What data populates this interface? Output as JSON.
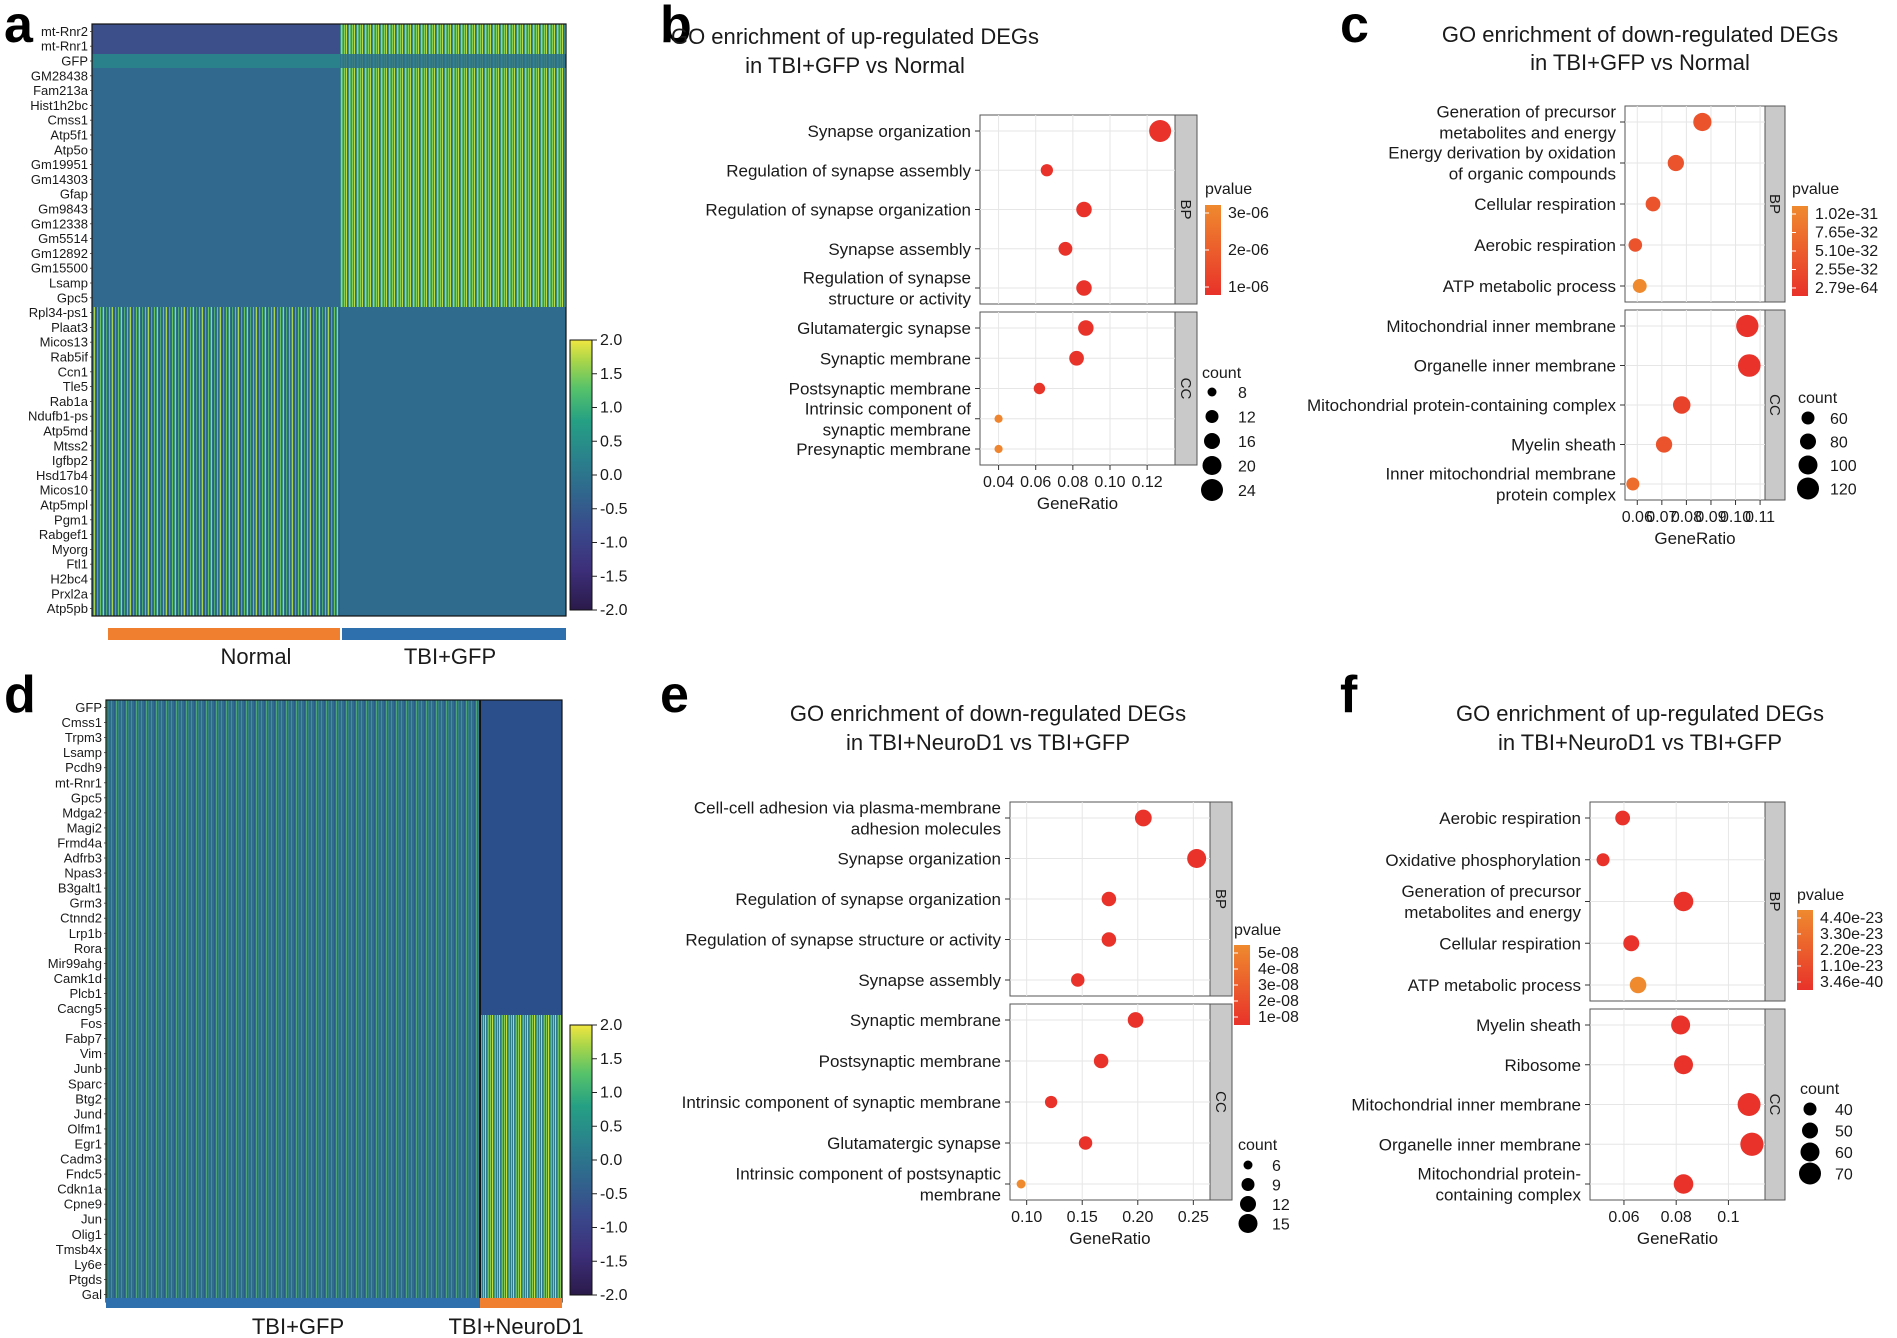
{
  "panels": {
    "a": {
      "letter": "a",
      "genes": [
        "mt-Rnr2",
        "mt-Rnr1",
        "GFP",
        "GM28438",
        "Fam213a",
        "Hist1h2bc",
        "Cmss1",
        "Atp5f1",
        "Atp5o",
        "Gm19951",
        "Gm14303",
        "Gfap",
        "Gm9843",
        "Gm12338",
        "Gm5514",
        "Gm12892",
        "Gm15500",
        "Lsamp",
        "Gpc5",
        "Rpl34-ps1",
        "Plaat3",
        "Micos13",
        "Rab5if",
        "Ccn1",
        "Tle5",
        "Rab1a",
        "Ndufb1-ps",
        "Atp5md",
        "Mtss2",
        "Igfbp2",
        "Hsd17b4",
        "Micos10",
        "Atp5mpl",
        "Pgm1",
        "Rabgef1",
        "Myorg",
        "Ftl1",
        "H2bc4",
        "Prxl2a",
        "Atp5pb"
      ],
      "groups": [
        {
          "name": "Normal",
          "color": "#f08030"
        },
        {
          "name": "TBI+GFP",
          "color": "#2e6fad"
        }
      ],
      "colorbar_ticks": [
        "2.0",
        "1.5",
        "1.0",
        "0.5",
        "0.0",
        "-0.5",
        "-1.0",
        "-1.5",
        "-2.0"
      ]
    },
    "d": {
      "letter": "d",
      "genes": [
        "GFP",
        "Cmss1",
        "Trpm3",
        "Lsamp",
        "Pcdh9",
        "mt-Rnr1",
        "Gpc5",
        "Mdga2",
        "Magi2",
        "Frmd4a",
        "Adfrb3",
        "Npas3",
        "B3galt1",
        "Grm3",
        "Ctnnd2",
        "Lrp1b",
        "Rora",
        "Mir99ahg",
        "Camk1d",
        "Plcb1",
        "Cacng5",
        "Fos",
        "Fabp7",
        "Vim",
        "Junb",
        "Sparc",
        "Btg2",
        "Jund",
        "Olfm1",
        "Egr1",
        "Cadm3",
        "Fndc5",
        "Cdkn1a",
        "Cpne9",
        "Jun",
        "Olig1",
        "Tmsb4x",
        "Ly6e",
        "Ptgds",
        "Gal"
      ],
      "groups": [
        {
          "name": "TBI+GFP",
          "color": "#2e6fad"
        },
        {
          "name": "TBI+NeuroD1",
          "color": "#f08030"
        }
      ],
      "colorbar_ticks": [
        "2.0",
        "1.5",
        "1.0",
        "0.5",
        "0.0",
        "-0.5",
        "-1.0",
        "-1.5",
        "-2.0"
      ]
    }
  },
  "chart_data": [
    {
      "id": "a",
      "type": "heatmap",
      "title": "",
      "rows": [
        "mt-Rnr2",
        "mt-Rnr1",
        "GFP",
        "GM28438",
        "Fam213a",
        "Hist1h2bc",
        "Cmss1",
        "Atp5f1",
        "Atp5o",
        "Gm19951",
        "Gm14303",
        "Gfap",
        "Gm9843",
        "Gm12338",
        "Gm5514",
        "Gm12892",
        "Gm15500",
        "Lsamp",
        "Gpc5",
        "Rpl34-ps1",
        "Plaat3",
        "Micos13",
        "Rab5if",
        "Ccn1",
        "Tle5",
        "Rab1a",
        "Ndufb1-ps",
        "Atp5md",
        "Mtss2",
        "Igfbp2",
        "Hsd17b4",
        "Micos10",
        "Atp5mpl",
        "Pgm1",
        "Rabgef1",
        "Myorg",
        "Ftl1",
        "H2bc4",
        "Prxl2a",
        "Atp5pb"
      ],
      "column_groups": [
        "Normal",
        "TBI+GFP"
      ],
      "color_range": [
        -2.0,
        2.0
      ]
    },
    {
      "id": "b",
      "type": "scatter",
      "title": "GO enrichment of up-regulated DEGs in TBI+GFP vs Normal",
      "title_lines": [
        "GO enrichment of up-regulated DEGs",
        "in TBI+GFP vs Normal"
      ],
      "xlabel": "GeneRatio",
      "xlim": [
        0.03,
        0.135
      ],
      "xticks": [
        0.04,
        0.06,
        0.08,
        0.1,
        0.12
      ],
      "xtick_labels": [
        "0.04",
        "0.06",
        "0.08",
        "0.10",
        "0.12"
      ],
      "facets": [
        {
          "name": "BP",
          "terms": [
            {
              "label": [
                "Synapse organization"
              ],
              "x": 0.127,
              "count": 24,
              "p": 1e-07
            },
            {
              "label": [
                "Regulation of synapse assembly"
              ],
              "x": 0.066,
              "count": 12,
              "p": 1e-07
            },
            {
              "label": [
                "Regulation of synapse organization"
              ],
              "x": 0.086,
              "count": 16,
              "p": 1e-07
            },
            {
              "label": [
                "Synapse assembly"
              ],
              "x": 0.076,
              "count": 14,
              "p": 1e-07
            },
            {
              "label": [
                "Regulation of synapse",
                "structure or activity"
              ],
              "x": 0.086,
              "count": 16,
              "p": 1e-07
            }
          ]
        },
        {
          "name": "CC",
          "terms": [
            {
              "label": [
                "Glutamatergic synapse"
              ],
              "x": 0.087,
              "count": 16,
              "p": 2e-07
            },
            {
              "label": [
                "Synaptic membrane"
              ],
              "x": 0.082,
              "count": 15,
              "p": 2e-07
            },
            {
              "label": [
                "Postsynaptic membrane"
              ],
              "x": 0.062,
              "count": 11,
              "p": 3e-07
            },
            {
              "label": [
                "Intrinsic component of",
                "synaptic membrane"
              ],
              "x": 0.04,
              "count": 7,
              "p": 2.8e-06
            },
            {
              "label": [
                "Presynaptic membrane"
              ],
              "x": 0.04,
              "count": 7,
              "p": 2.8e-06
            }
          ]
        }
      ],
      "pvalue_legend": {
        "title": "pvalue",
        "labels": [
          "3e-06",
          "2e-06",
          "1e-06"
        ],
        "range": [
          1e-07,
          3e-06
        ]
      },
      "count_legend": {
        "title": "count",
        "values": [
          8,
          12,
          16,
          20,
          24
        ]
      }
    },
    {
      "id": "c",
      "type": "scatter",
      "title": "GO enrichment of down-regulated DEGs in TBI+GFP vs Normal",
      "title_lines": [
        "GO enrichment of down-regulated DEGs",
        "in TBI+GFP vs Normal"
      ],
      "xlabel": "GeneRatio",
      "xlim": [
        0.055,
        0.112
      ],
      "xticks": [
        0.06,
        0.07,
        0.08,
        0.09,
        0.1,
        0.11
      ],
      "xtick_labels": [
        "0.06",
        "0.07",
        "0.08",
        "0.09",
        "0.10",
        "0.11"
      ],
      "facets": [
        {
          "name": "BP",
          "terms": [
            {
              "label": [
                "Generation of precursor",
                "metabolites and energy"
              ],
              "x": 0.0865,
              "count": 95,
              "p": 1e-40
            },
            {
              "label": [
                "Energy derivation by oxidation",
                "of organic compounds"
              ],
              "x": 0.0757,
              "count": 82,
              "p": 1e-40
            },
            {
              "label": [
                "Cellular respiration"
              ],
              "x": 0.0664,
              "count": 72,
              "p": 1e-40
            },
            {
              "label": [
                "Aerobic respiration"
              ],
              "x": 0.0592,
              "count": 64,
              "p": 1e-40
            },
            {
              "label": [
                "ATP metabolic process"
              ],
              "x": 0.061,
              "count": 66,
              "p": 1e-31
            }
          ]
        },
        {
          "name": "CC",
          "terms": [
            {
              "label": [
                "Mitochondrial inner membrane"
              ],
              "x": 0.1048,
              "count": 122,
              "p": 1e-60
            },
            {
              "label": [
                "Organelle inner membrane"
              ],
              "x": 0.1056,
              "count": 124,
              "p": 1e-60
            },
            {
              "label": [
                "Mitochondrial protein-containing complex"
              ],
              "x": 0.0781,
              "count": 90,
              "p": 1e-45
            },
            {
              "label": [
                "Myelin sheath"
              ],
              "x": 0.0709,
              "count": 82,
              "p": 1e-40
            },
            {
              "label": [
                "Inner mitochondrial membrane",
                "protein complex"
              ],
              "x": 0.0582,
              "count": 60,
              "p": 1e-35
            }
          ]
        }
      ],
      "pvalue_legend": {
        "title": "pvalue",
        "labels": [
          "1.02e-31",
          "7.65e-32",
          "5.10e-32",
          "2.55e-32",
          "2.79e-64"
        ],
        "range": [
          2.79e-64,
          1.02e-31
        ]
      },
      "count_legend": {
        "title": "count",
        "values": [
          60,
          80,
          100,
          120
        ]
      }
    },
    {
      "id": "d",
      "type": "heatmap",
      "title": "",
      "rows": [
        "GFP",
        "Cmss1",
        "Trpm3",
        "Lsamp",
        "Pcdh9",
        "mt-Rnr1",
        "Gpc5",
        "Mdga2",
        "Magi2",
        "Frmd4a",
        "Adfrb3",
        "Npas3",
        "B3galt1",
        "Grm3",
        "Ctnnd2",
        "Lrp1b",
        "Rora",
        "Mir99ahg",
        "Camk1d",
        "Plcb1",
        "Cacng5",
        "Fos",
        "Fabp7",
        "Vim",
        "Junb",
        "Sparc",
        "Btg2",
        "Jund",
        "Olfm1",
        "Egr1",
        "Cadm3",
        "Fndc5",
        "Cdkn1a",
        "Cpne9",
        "Jun",
        "Olig1",
        "Tmsb4x",
        "Ly6e",
        "Ptgds",
        "Gal"
      ],
      "column_groups": [
        "TBI+GFP",
        "TBI+NeuroD1"
      ],
      "color_range": [
        -2.0,
        2.0
      ]
    },
    {
      "id": "e",
      "type": "scatter",
      "title": "GO enrichment of down-regulated DEGs in TBI+NeuroD1 vs TBI+GFP",
      "title_lines": [
        "GO enrichment of down-regulated DEGs",
        "in TBI+NeuroD1 vs TBI+GFP"
      ],
      "xlabel": "GeneRatio",
      "xlim": [
        0.085,
        0.265
      ],
      "xticks": [
        0.1,
        0.15,
        0.2,
        0.25
      ],
      "xtick_labels": [
        "0.10",
        "0.15",
        "0.20",
        "0.25"
      ],
      "facets": [
        {
          "name": "BP",
          "terms": [
            {
              "label": [
                "Cell-cell adhesion via plasma-membrane",
                "adhesion molecules"
              ],
              "x": 0.205,
              "count": 13,
              "p": 1e-09
            },
            {
              "label": [
                "Synapse organization"
              ],
              "x": 0.253,
              "count": 15,
              "p": 1e-09
            },
            {
              "label": [
                "Regulation of synapse organization"
              ],
              "x": 0.174,
              "count": 11,
              "p": 1e-09
            },
            {
              "label": [
                "Regulation of synapse structure or activity"
              ],
              "x": 0.174,
              "count": 11,
              "p": 1e-09
            },
            {
              "label": [
                "Synapse assembly"
              ],
              "x": 0.146,
              "count": 10,
              "p": 1e-09
            }
          ]
        },
        {
          "name": "CC",
          "terms": [
            {
              "label": [
                "Synaptic membrane"
              ],
              "x": 0.198,
              "count": 12,
              "p": 1e-09
            },
            {
              "label": [
                "Postsynaptic membrane"
              ],
              "x": 0.167,
              "count": 11,
              "p": 1e-09
            },
            {
              "label": [
                "Intrinsic component of synaptic membrane"
              ],
              "x": 0.122,
              "count": 9,
              "p": 1e-09
            },
            {
              "label": [
                "Glutamatergic synapse"
              ],
              "x": 0.153,
              "count": 10,
              "p": 1e-09
            },
            {
              "label": [
                "Intrinsic component of postsynaptic",
                "membrane"
              ],
              "x": 0.095,
              "count": 6,
              "p": 5e-08
            }
          ]
        }
      ],
      "pvalue_legend": {
        "title": "pvalue",
        "labels": [
          "5e-08",
          "4e-08",
          "3e-08",
          "2e-08",
          "1e-08"
        ],
        "range": [
          1e-09,
          5e-08
        ]
      },
      "count_legend": {
        "title": "count",
        "values": [
          6,
          9,
          12,
          15
        ]
      }
    },
    {
      "id": "f",
      "type": "scatter",
      "title": "GO enrichment of up-regulated DEGs in TBI+NeuroD1 vs TBI+GFP",
      "title_lines": [
        "GO enrichment of up-regulated DEGs",
        "in TBI+NeuroD1 vs TBI+GFP"
      ],
      "xlabel": "GeneRatio",
      "xlim": [
        0.047,
        0.114
      ],
      "xticks": [
        0.06,
        0.08,
        0.1
      ],
      "xtick_labels": [
        "0.06",
        "0.08",
        "0.1"
      ],
      "facets": [
        {
          "name": "BP",
          "terms": [
            {
              "label": [
                "Aerobic respiration"
              ],
              "x": 0.0595,
              "count": 46,
              "p": 3.46e-40
            },
            {
              "label": [
                "Oxidative phosphorylation"
              ],
              "x": 0.052,
              "count": 40,
              "p": 3.46e-40
            },
            {
              "label": [
                "Generation of precursor",
                "metabolites and energy"
              ],
              "x": 0.0828,
              "count": 62,
              "p": 3.46e-40
            },
            {
              "label": [
                "Cellular respiration"
              ],
              "x": 0.0628,
              "count": 50,
              "p": 3.46e-40
            },
            {
              "label": [
                "ATP metabolic process"
              ],
              "x": 0.0654,
              "count": 52,
              "p": 4.4e-23
            }
          ]
        },
        {
          "name": "CC",
          "terms": [
            {
              "label": [
                "Myelin sheath"
              ],
              "x": 0.0817,
              "count": 60,
              "p": 3.46e-40
            },
            {
              "label": [
                "Ribosome"
              ],
              "x": 0.0828,
              "count": 60,
              "p": 3.46e-40
            },
            {
              "label": [
                "Mitochondrial inner membrane"
              ],
              "x": 0.1079,
              "count": 73,
              "p": 3.46e-40
            },
            {
              "label": [
                "Organelle inner membrane"
              ],
              "x": 0.109,
              "count": 74,
              "p": 3.46e-40
            },
            {
              "label": [
                "Mitochondrial protein-",
                "containing complex"
              ],
              "x": 0.0828,
              "count": 62,
              "p": 3.46e-40
            }
          ]
        }
      ],
      "pvalue_legend": {
        "title": "pvalue",
        "labels": [
          "4.40e-23",
          "3.30e-23",
          "2.20e-23",
          "1.10e-23",
          "3.46e-40"
        ],
        "range": [
          3.46e-40,
          4.4e-23
        ]
      },
      "count_legend": {
        "title": "count",
        "values": [
          40,
          50,
          60,
          70
        ]
      }
    }
  ],
  "colors": {
    "dot_low_p": "#e8322a",
    "dot_high_p": "#ef8a2e",
    "facet_strip": "#c9c9c9",
    "grid": "#e6e6e6"
  }
}
